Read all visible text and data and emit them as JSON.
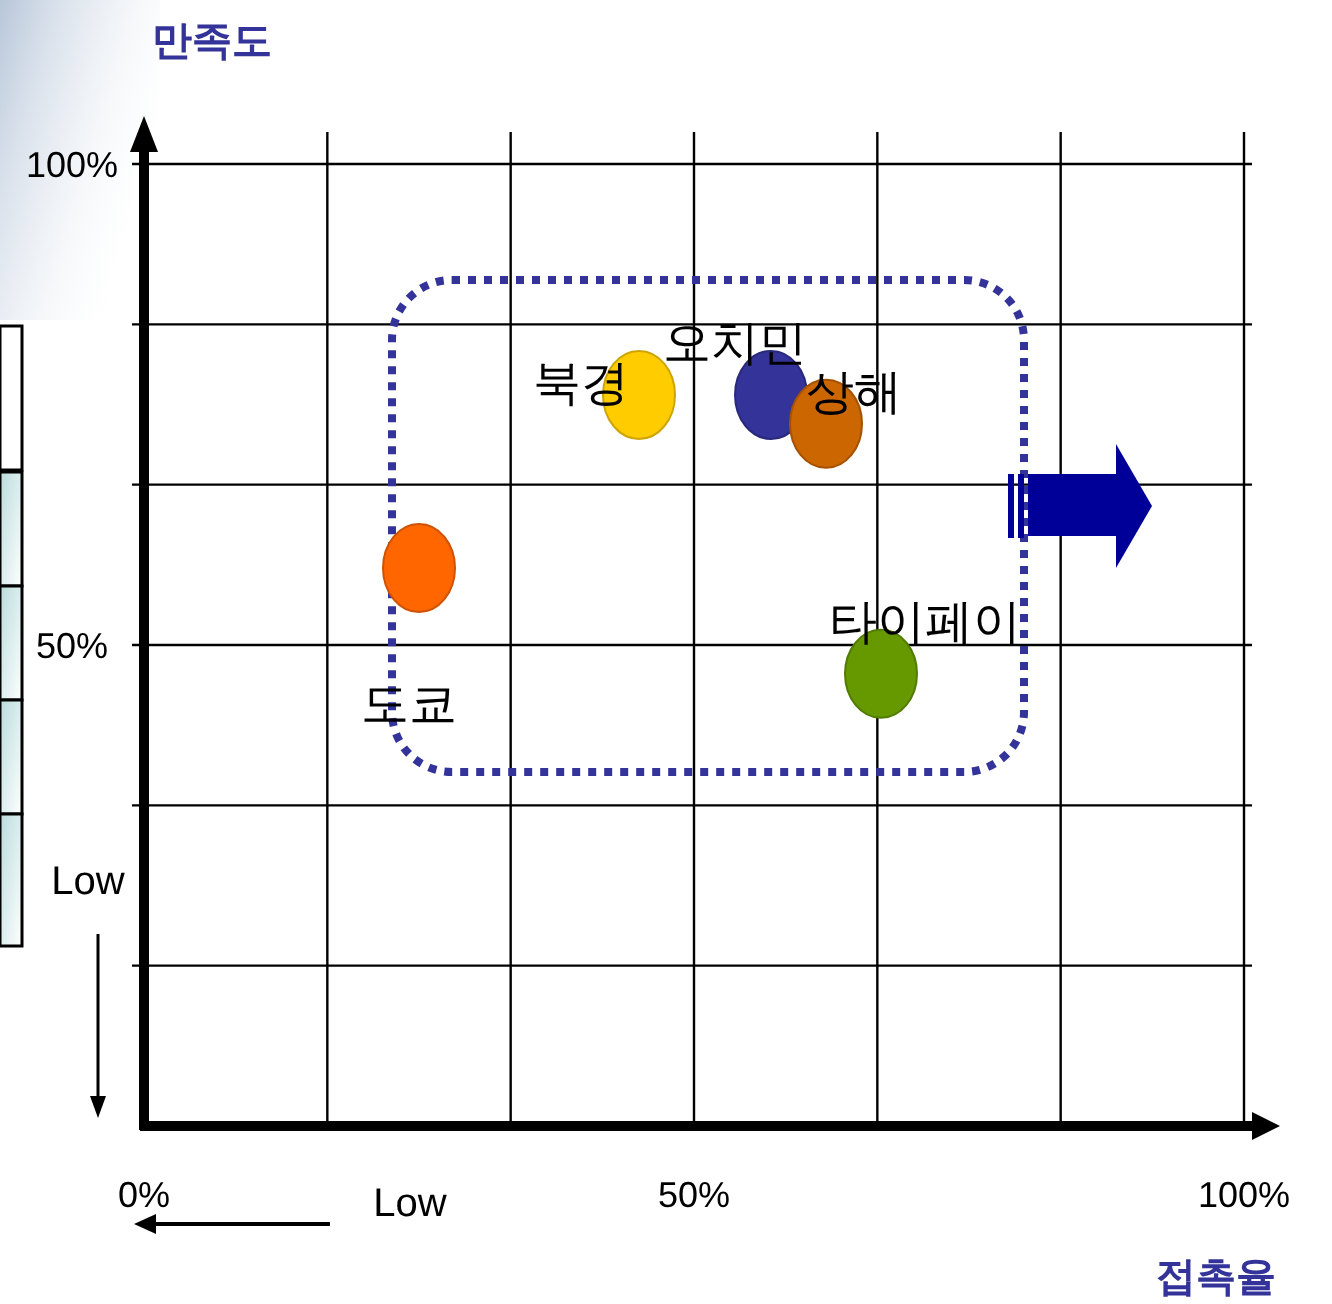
{
  "chart_data": {
    "type": "scatter",
    "xlabel": "접촉율",
    "ylabel": "만족도",
    "xlim": [
      0,
      100
    ],
    "ylim": [
      0,
      100
    ],
    "xticks": [
      {
        "value": 0,
        "label": "0%"
      },
      {
        "value": 50,
        "label": "50%"
      },
      {
        "value": 100,
        "label": "100%"
      }
    ],
    "yticks": [
      {
        "value": 50,
        "label": "50%"
      },
      {
        "value": 100,
        "label": "100%"
      }
    ],
    "grid": true,
    "marker": "circle",
    "annotations": [
      "Low",
      "Low"
    ],
    "series": [
      {
        "name": "도쿄",
        "color": "#ff6600",
        "x": [
          25
        ],
        "values": [
          58
        ]
      },
      {
        "name": "북경",
        "color": "#ffcc00",
        "x": [
          45
        ],
        "values": [
          76
        ]
      },
      {
        "name": "오치민",
        "color": "#333399",
        "x": [
          57
        ],
        "values": [
          76
        ]
      },
      {
        "name": "상해",
        "color": "#cc6600",
        "x": [
          62
        ],
        "values": [
          73
        ]
      },
      {
        "name": "타이페이",
        "color": "#669900",
        "x": [
          67
        ],
        "values": [
          47
        ]
      }
    ]
  }
}
